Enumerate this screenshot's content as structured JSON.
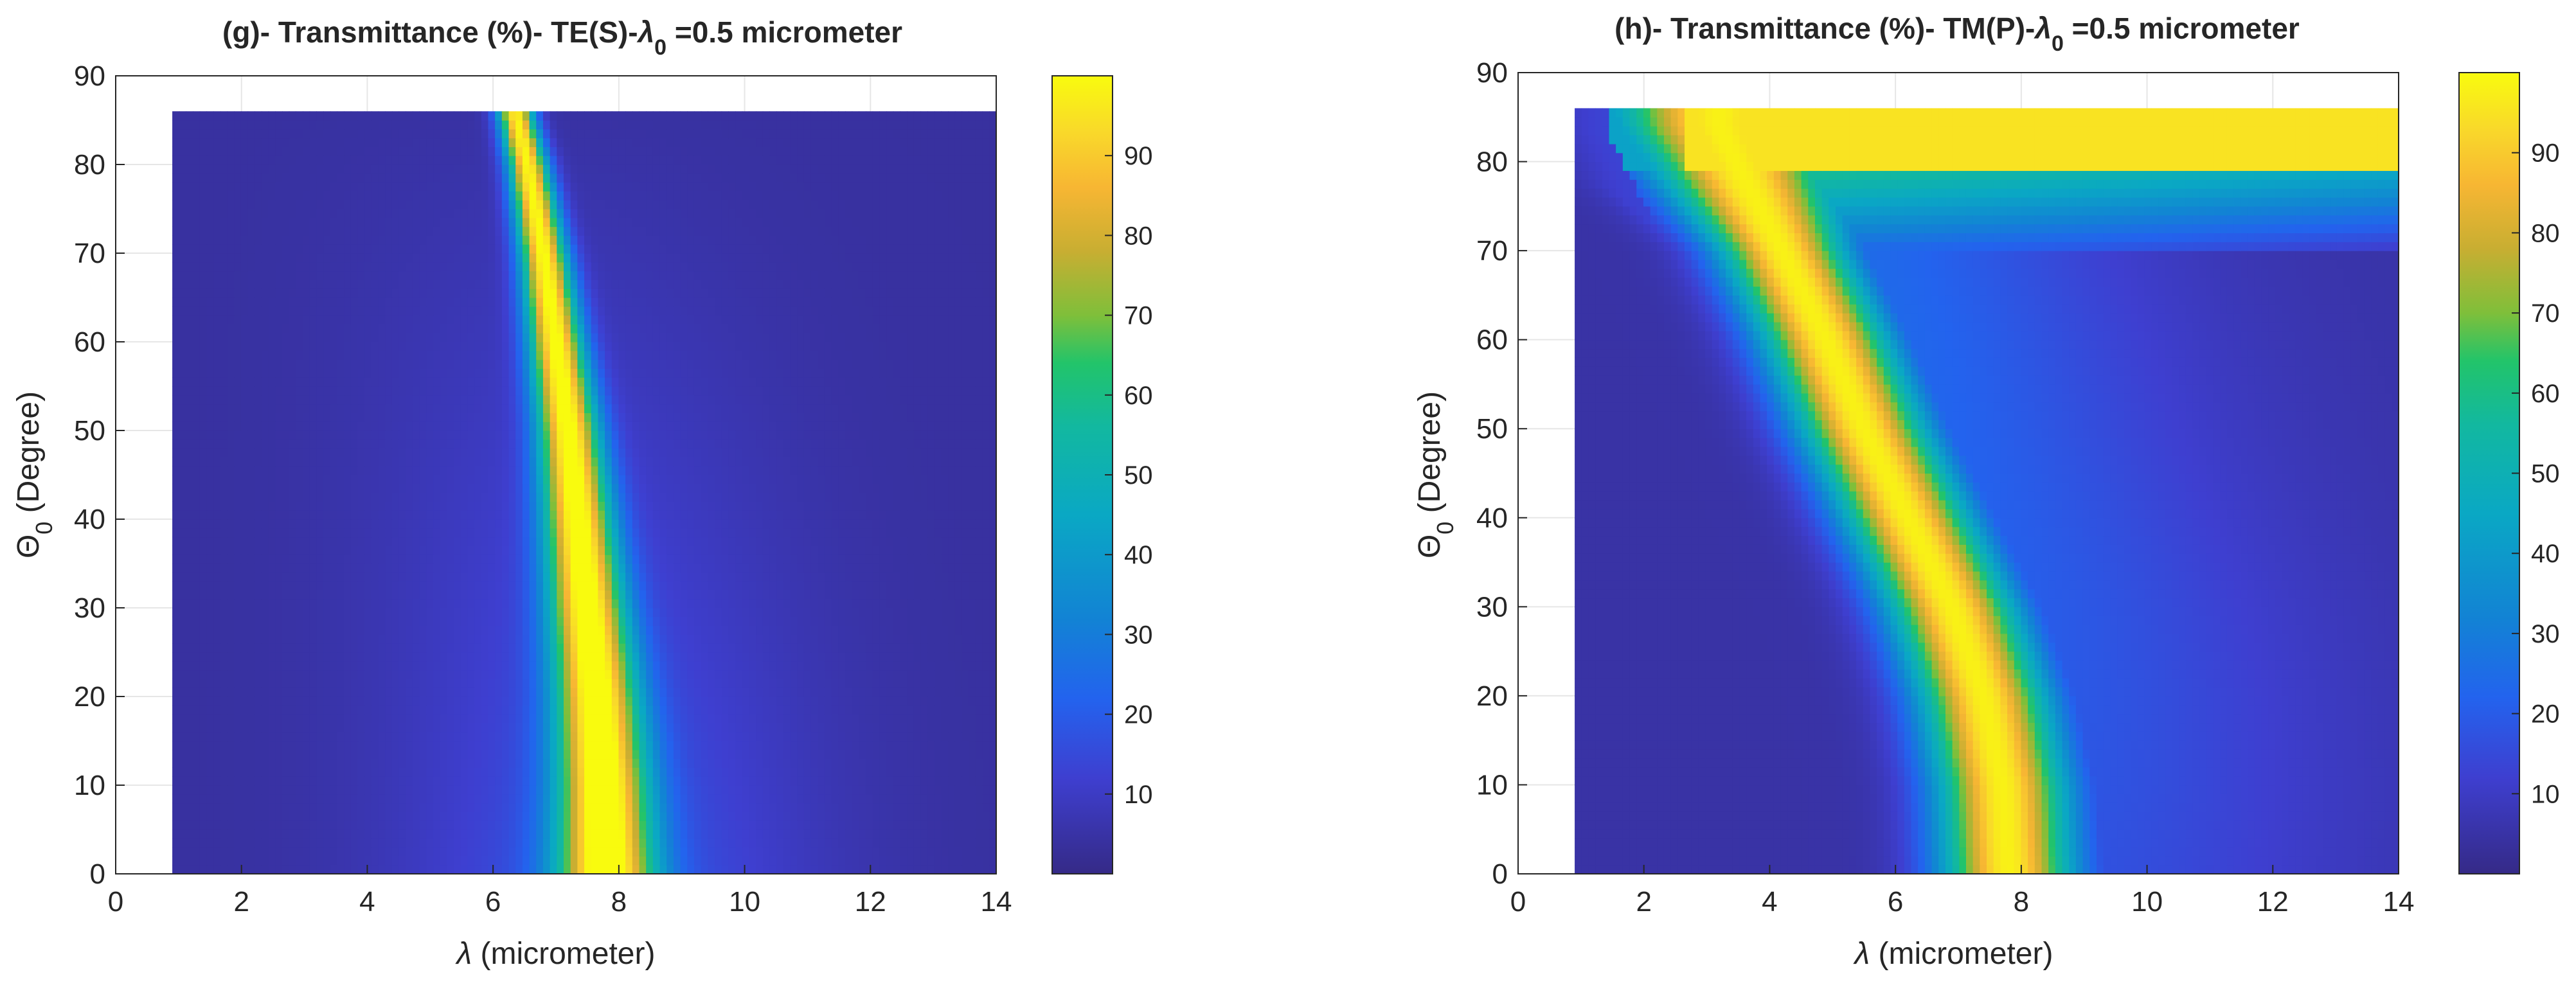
{
  "chart_data": [
    {
      "type": "heatmap",
      "panel": "g",
      "title": "(g)- Transmittance (%)- TE(S)-",
      "title_symbol": "λ",
      "title_subscript": "0",
      "title_tail": " =0.5 micrometer",
      "xlabel_symbol": "λ",
      "xlabel_text": " (micrometer)",
      "ylabel_symbol": "Θ",
      "ylabel_subscript": "0",
      "ylabel_text": " (Degree)",
      "xlim": [
        0,
        14
      ],
      "ylim": [
        0,
        90
      ],
      "x_ticks": [
        "0",
        "2",
        "4",
        "6",
        "8",
        "10",
        "12",
        "14"
      ],
      "y_ticks": [
        "0",
        "10",
        "20",
        "30",
        "40",
        "50",
        "60",
        "70",
        "80",
        "90"
      ],
      "data_extent": {
        "x": [
          0.9,
          14
        ],
        "y": [
          0,
          86
        ]
      },
      "colorbar": {
        "range": [
          0,
          100
        ],
        "ticks": [
          "10",
          "20",
          "30",
          "40",
          "50",
          "60",
          "70",
          "80",
          "90"
        ],
        "colormap": "parula"
      },
      "features": {
        "ridge_center": [
          [
            0,
            7.8
          ],
          [
            10,
            7.75
          ],
          [
            20,
            7.65
          ],
          [
            30,
            7.5
          ],
          [
            40,
            7.35
          ],
          [
            50,
            7.2
          ],
          [
            60,
            7.0
          ],
          [
            70,
            6.8
          ],
          [
            80,
            6.55
          ],
          [
            86,
            6.35
          ]
        ],
        "ridge_peak_percent": 98,
        "background_percent": 4
      }
    },
    {
      "type": "heatmap",
      "panel": "h",
      "title": "(h)- Transmittance (%)- TM(P)-",
      "title_symbol": "λ",
      "title_subscript": "0",
      "title_tail": " =0.5 micrometer",
      "xlabel_symbol": "λ",
      "xlabel_text": " (micrometer)",
      "ylabel_symbol": "Θ",
      "ylabel_subscript": "0",
      "ylabel_text": " (Degree)",
      "xlim": [
        0,
        14
      ],
      "ylim": [
        0,
        90
      ],
      "x_ticks": [
        "0",
        "2",
        "4",
        "6",
        "8",
        "10",
        "12",
        "14"
      ],
      "y_ticks": [
        "0",
        "10",
        "20",
        "30",
        "40",
        "50",
        "60",
        "70",
        "80",
        "90"
      ],
      "data_extent": {
        "x": [
          0.9,
          14
        ],
        "y": [
          0,
          86
        ]
      },
      "colorbar": {
        "range": [
          0,
          100
        ],
        "ticks": [
          "10",
          "20",
          "30",
          "40",
          "50",
          "60",
          "70",
          "80",
          "90"
        ],
        "colormap": "parula"
      },
      "features": {
        "ridge_center": [
          [
            0,
            7.8
          ],
          [
            10,
            7.7
          ],
          [
            20,
            7.4
          ],
          [
            30,
            6.9
          ],
          [
            40,
            6.2
          ],
          [
            50,
            5.5
          ],
          [
            60,
            4.9
          ],
          [
            70,
            4.2
          ],
          [
            78,
            3.6
          ],
          [
            84,
            3.2
          ]
        ],
        "ridge_peak_percent": 98,
        "high_angle_band_percent": 95,
        "background_percent": 5
      }
    }
  ]
}
